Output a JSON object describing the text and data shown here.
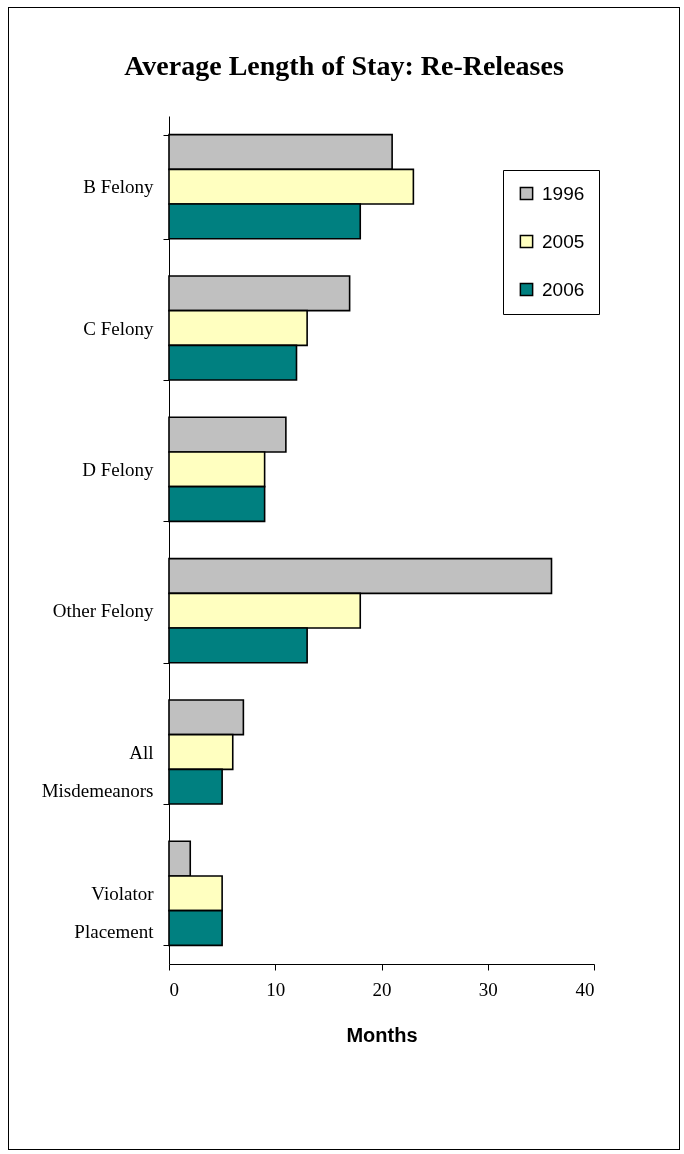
{
  "chart_data": {
    "type": "bar",
    "orientation": "horizontal",
    "title": "Average Length of Stay: Re-Releases",
    "xlabel": "Months",
    "categories": [
      "B Felony",
      "C Felony",
      "D Felony",
      "Other Felony",
      "All Misdemeanors",
      "Violator Placement"
    ],
    "series": [
      {
        "name": "1996",
        "color": "#c0c0c0",
        "values": [
          21,
          17,
          11,
          36,
          7,
          2
        ]
      },
      {
        "name": "2005",
        "color": "#ffffc0",
        "values": [
          23,
          13,
          9,
          18,
          6,
          5
        ]
      },
      {
        "name": "2006",
        "color": "#008080",
        "values": [
          18,
          12,
          9,
          13,
          5,
          5
        ]
      }
    ],
    "xlim": [
      0,
      40
    ],
    "xticks": [
      0,
      10,
      20,
      30,
      40
    ],
    "legend": "top right"
  }
}
